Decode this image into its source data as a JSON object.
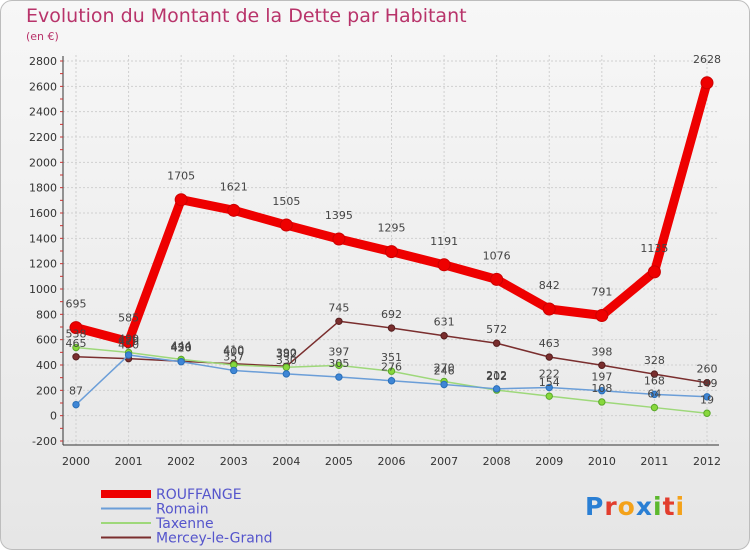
{
  "title": "Evolution du Montant de la Dette par Habitant",
  "subtitle": "(en €)",
  "logo": {
    "p": "P",
    "r": "r",
    "o": "o",
    "x": "x",
    "i1": "i",
    "t": "t",
    "i2": "i"
  },
  "chart_data": {
    "type": "line",
    "title": "Evolution du Montant de la Dette par Habitant",
    "ylabel": "(en €)",
    "xlabel": "",
    "ylim": [
      -200,
      2800
    ],
    "yticks": [
      -200,
      0,
      200,
      400,
      600,
      800,
      1000,
      1200,
      1400,
      1600,
      1800,
      2000,
      2200,
      2400,
      2600,
      2800
    ],
    "grid": true,
    "legend_position": "bottom-left",
    "categories": [
      "2000",
      "2001",
      "2002",
      "2003",
      "2004",
      "2005",
      "2006",
      "2007",
      "2008",
      "2009",
      "2010",
      "2011",
      "2012"
    ],
    "series": [
      {
        "name": "ROUFFANGE",
        "color": "#ee0000",
        "marker_fill": "#ee0000",
        "marker_edge": "#cc0000",
        "label_offset": -20,
        "values": [
          695,
          585,
          1705,
          1621,
          1505,
          1395,
          1295,
          1191,
          1076,
          842,
          791,
          1135,
          2628
        ],
        "labels": [
          "695",
          "585",
          "1705",
          "1621",
          "1505",
          "1395",
          "1295",
          "1191",
          "1076",
          "842",
          "791",
          "1135",
          "2628"
        ]
      },
      {
        "name": "Romain",
        "color": "#6b9ed8",
        "marker_fill": "#3e86d6",
        "marker_edge": "#2a6fb8",
        "label_offset": -10,
        "values": [
          87,
          479,
          426,
          357,
          330,
          305,
          276,
          246,
          212,
          222,
          197,
          168,
          149
        ],
        "labels": [
          "87",
          "479",
          "426",
          "357",
          "330",
          "305",
          "276",
          "246",
          "212",
          "222",
          "197",
          "168",
          "149"
        ]
      },
      {
        "name": "Taxenne",
        "color": "#9ed87a",
        "marker_fill": "#88d83c",
        "marker_edge": "#5aa82a",
        "label_offset": -10,
        "values": [
          538,
          499,
          444,
          400,
          382,
          397,
          351,
          270,
          202,
          154,
          108,
          64,
          19
        ],
        "labels": [
          "538",
          "499",
          "444",
          "400",
          "382",
          "397",
          "351",
          "270",
          "202",
          "154",
          "108",
          "64",
          "19"
        ]
      },
      {
        "name": "Mercey-le-Grand",
        "color": "#7a2e2e",
        "marker_fill": "#7a2e2e",
        "marker_edge": "#551e1e",
        "label_offset": -10,
        "values": [
          465,
          450,
          430,
          410,
          390,
          745,
          692,
          631,
          572,
          463,
          398,
          328,
          260
        ],
        "labels": [
          "465",
          "450",
          "430",
          "410",
          "390",
          "745",
          "692",
          "631",
          "572",
          "463",
          "398",
          "328",
          "260"
        ]
      }
    ]
  }
}
